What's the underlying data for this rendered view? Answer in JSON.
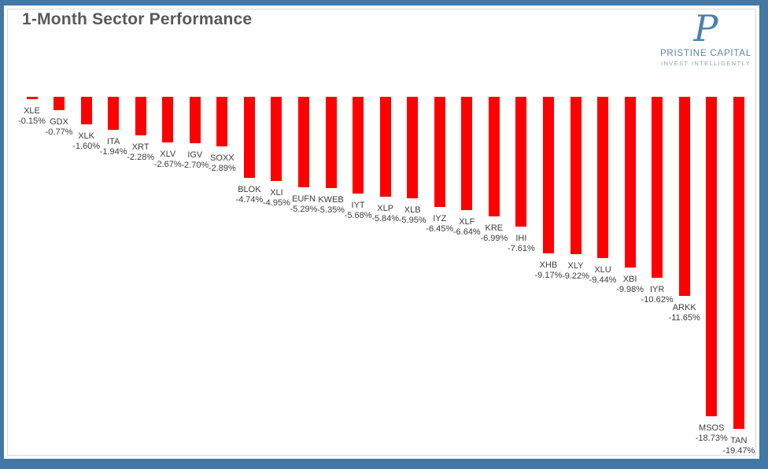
{
  "frame": {
    "border_color": "#4377a4",
    "card_background": "#ffffff",
    "card_border_color": "#d9d9d9"
  },
  "header": {
    "title": "1-Month Sector Performance"
  },
  "logo": {
    "monogram": "P",
    "name": "PRISTINE CAPITAL",
    "tagline": "INVEST INTELLIGENTLY",
    "monogram_color": "#4d7fae"
  },
  "chart_data": {
    "type": "bar",
    "title": "1-Month Sector Performance",
    "xlabel": "",
    "ylabel": "",
    "ylim": [
      -20,
      0
    ],
    "grid": false,
    "legend": "none",
    "bar_color": "#ff0000",
    "label_color": "#3d3d3d",
    "categories": [
      "XLE",
      "GDX",
      "XLK",
      "ITA",
      "XRT",
      "XLV",
      "IGV",
      "SOXX",
      "BLOK",
      "XLI",
      "EUFN",
      "KWEB",
      "IYT",
      "XLP",
      "XLB",
      "IYZ",
      "XLF",
      "KRE",
      "IHI",
      "XHB",
      "XLY",
      "XLU",
      "XBI",
      "IYR",
      "ARKK",
      "MSOS",
      "TAN"
    ],
    "values": [
      -0.15,
      -0.77,
      -1.6,
      -1.94,
      -2.28,
      -2.67,
      -2.7,
      -2.89,
      -4.74,
      -4.95,
      -5.29,
      -5.35,
      -5.68,
      -5.84,
      -5.95,
      -6.45,
      -6.64,
      -6.99,
      -7.61,
      -9.17,
      -9.22,
      -9.44,
      -9.98,
      -10.62,
      -11.65,
      -18.73,
      -19.47
    ],
    "labels": [
      "-0.15%",
      "-0.77%",
      "-1.60%",
      "-1.94%",
      "-2.28%",
      "-2.67%",
      "-2.70%",
      "-2.89%",
      "-4.74%",
      "-4.95%",
      "-5.29%",
      "-5.35%",
      "-5.68%",
      "-5.84%",
      "-5.95%",
      "-6.45%",
      "-6.64%",
      "-6.99%",
      "-7.61%",
      "-9.17%",
      "-9.22%",
      "-9.44%",
      "-9.98%",
      "-10.62%",
      "-11.65%",
      "-18.73%",
      "-19.47%"
    ]
  }
}
